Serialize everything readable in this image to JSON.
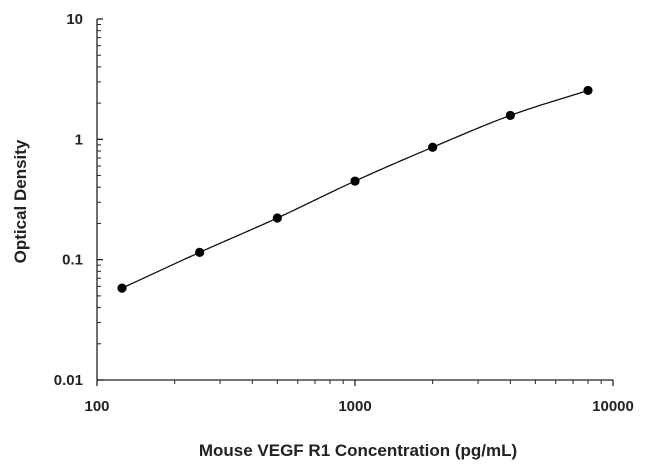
{
  "chart_data": {
    "type": "scatter",
    "title": "",
    "xlabel": "Mouse VEGF R1 Concentration (pg/mL)",
    "ylabel": "Optical Density",
    "x_scale": "log",
    "y_scale": "log",
    "xlim": [
      100,
      10000
    ],
    "ylim": [
      0.01,
      10
    ],
    "x_ticks": [
      100,
      1000,
      10000
    ],
    "x_tick_labels": [
      "100",
      "1000",
      "10000"
    ],
    "y_ticks": [
      0.01,
      0.1,
      1,
      10
    ],
    "y_tick_labels": [
      "0.01",
      "0.1",
      "1",
      "10"
    ],
    "grid": false,
    "legend": "none",
    "series": [
      {
        "x": [
          125,
          250,
          500,
          1000,
          2000,
          4000,
          8000
        ],
        "y": [
          0.058,
          0.115,
          0.222,
          0.45,
          0.86,
          1.58,
          2.55
        ],
        "fit_line": true
      }
    ],
    "colors": {
      "points": "#000000",
      "line": "#111111",
      "axes": "#222222"
    }
  }
}
